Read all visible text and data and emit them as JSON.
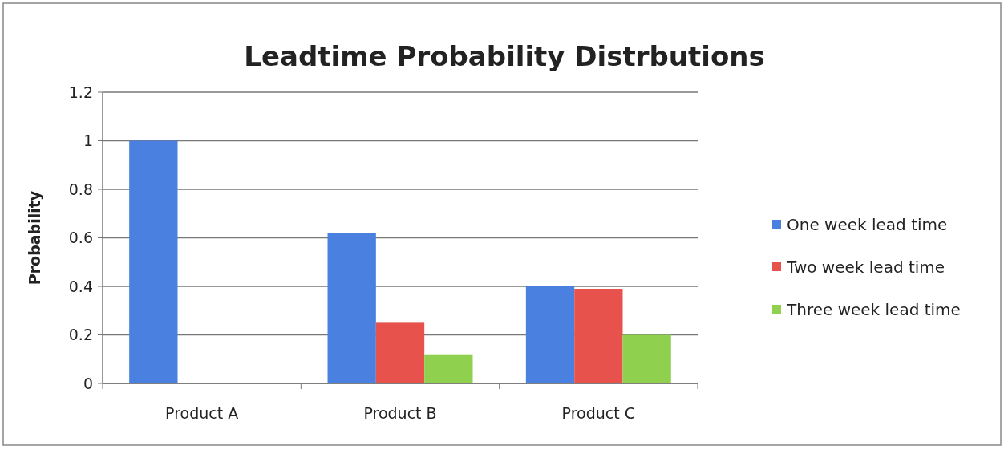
{
  "chart_data": {
    "type": "bar",
    "title": "Leadtime Probability Distrbutions",
    "ylabel": "Probability",
    "categories": [
      "Product A",
      "Product B",
      "Product C"
    ],
    "series": [
      {
        "name": "One week lead time",
        "color": "#4a80e0",
        "values": [
          1,
          0.62,
          0.4
        ]
      },
      {
        "name": "Two week lead time",
        "color": "#e8524c",
        "values": [
          0,
          0.25,
          0.39
        ]
      },
      {
        "name": "Three week lead time",
        "color": "#8fd14f",
        "values": [
          0,
          0.12,
          0.2
        ]
      }
    ],
    "ylim": [
      0,
      1.2
    ],
    "yticks": [
      0,
      0.2,
      0.4,
      0.6,
      0.8,
      1,
      1.2
    ],
    "grid": "y",
    "legend": "right"
  }
}
